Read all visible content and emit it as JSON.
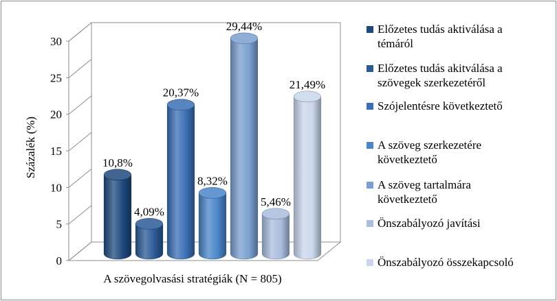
{
  "chart_data": {
    "type": "bar",
    "style": "3d-cylinder",
    "xlabel": "A szövegolvasási stratégiák (N = 805)",
    "ylabel": "Százalék (%)",
    "ylim": [
      0,
      30
    ],
    "yticks": [
      "0",
      "5",
      "10",
      "15",
      "20",
      "25",
      "30"
    ],
    "grid": false,
    "legend_position": "right",
    "series": [
      {
        "name": "Előzetes tudás aktiválása a témáról",
        "value": 10.8,
        "label": "10,8%",
        "color": "#1f497d"
      },
      {
        "name": "Előzetes tudás akitválása a szövegek szerkezetéről",
        "value": 4.09,
        "label": "4,09%",
        "color": "#2a5a96"
      },
      {
        "name": "Szójelentésre következtető",
        "value": 20.37,
        "label": "20,37%",
        "color": "#3a6fb5"
      },
      {
        "name": "A szöveg szerkezetére következtető",
        "value": 8.32,
        "label": "8,32%",
        "color": "#4a86c8"
      },
      {
        "name": "A szöveg tartalmára következtető",
        "value": 29.44,
        "label": "29,44%",
        "color": "#7a9fd0"
      },
      {
        "name": "Önszabályozó javítási",
        "value": 5.46,
        "label": "5,46%",
        "color": "#a9bddf"
      },
      {
        "name": "Önszabályozó összekapcsoló",
        "value": 21.49,
        "label": "21,49%",
        "color": "#c9d6ec"
      }
    ]
  }
}
